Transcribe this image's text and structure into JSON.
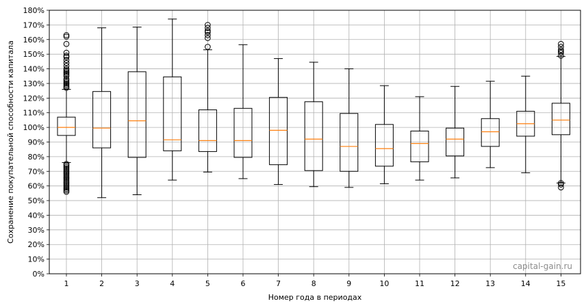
{
  "chart_data": {
    "type": "boxplot",
    "xlabel": "Номер года в периодах",
    "ylabel": "Сохранение покупательной способности капитала",
    "watermark": "capital-gain.ru",
    "ylim": [
      0,
      180
    ],
    "y_unit": "%",
    "y_ticks": [
      "0%",
      "10%",
      "20%",
      "30%",
      "40%",
      "50%",
      "60%",
      "70%",
      "80%",
      "90%",
      "100%",
      "110%",
      "120%",
      "130%",
      "140%",
      "150%",
      "160%",
      "170%",
      "180%"
    ],
    "grid": true,
    "colors": {
      "box": "#000000",
      "median": "#ff7f0e",
      "grid": "#b0b0b0"
    },
    "boxes": [
      {
        "x": "1",
        "whisker_low": 76,
        "q1": 94.5,
        "median": 100,
        "q3": 107,
        "whisker_high": 126,
        "outliers": [
          56,
          57,
          58,
          59,
          60,
          61,
          62,
          63,
          64,
          65,
          66,
          67,
          68,
          69,
          70,
          71,
          72,
          73,
          74,
          75,
          127,
          128,
          129,
          130,
          131,
          132,
          133,
          135,
          136,
          137,
          138,
          139,
          140,
          142,
          144,
          146,
          148,
          149,
          151,
          157,
          162,
          163
        ]
      },
      {
        "x": "2",
        "whisker_low": 52,
        "q1": 86,
        "median": 99.5,
        "q3": 124.5,
        "whisker_high": 168,
        "outliers": []
      },
      {
        "x": "3",
        "whisker_low": 54,
        "q1": 79.5,
        "median": 104.5,
        "q3": 138,
        "whisker_high": 168.5,
        "outliers": []
      },
      {
        "x": "4",
        "whisker_low": 64,
        "q1": 84,
        "median": 91.5,
        "q3": 134.5,
        "whisker_high": 174,
        "outliers": []
      },
      {
        "x": "5",
        "whisker_low": 69.5,
        "q1": 83.5,
        "median": 91,
        "q3": 112,
        "whisker_high": 153,
        "outliers": [
          155,
          161,
          163,
          165,
          166,
          168,
          170
        ]
      },
      {
        "x": "6",
        "whisker_low": 65,
        "q1": 79.5,
        "median": 91,
        "q3": 113,
        "whisker_high": 156.5,
        "outliers": []
      },
      {
        "x": "7",
        "whisker_low": 61,
        "q1": 74.5,
        "median": 98,
        "q3": 120.5,
        "whisker_high": 147,
        "outliers": []
      },
      {
        "x": "8",
        "whisker_low": 59.5,
        "q1": 70.5,
        "median": 92,
        "q3": 117.5,
        "whisker_high": 144.5,
        "outliers": []
      },
      {
        "x": "9",
        "whisker_low": 59,
        "q1": 70,
        "median": 87,
        "q3": 109.5,
        "whisker_high": 140,
        "outliers": []
      },
      {
        "x": "10",
        "whisker_low": 61.5,
        "q1": 73.5,
        "median": 85.5,
        "q3": 102,
        "whisker_high": 128.5,
        "outliers": []
      },
      {
        "x": "11",
        "whisker_low": 64,
        "q1": 76.5,
        "median": 89,
        "q3": 97.5,
        "whisker_high": 121,
        "outliers": []
      },
      {
        "x": "12",
        "whisker_low": 65.5,
        "q1": 80.5,
        "median": 92,
        "q3": 99.5,
        "whisker_high": 128,
        "outliers": []
      },
      {
        "x": "13",
        "whisker_low": 72.5,
        "q1": 87,
        "median": 97,
        "q3": 106,
        "whisker_high": 131.5,
        "outliers": []
      },
      {
        "x": "14",
        "whisker_low": 69,
        "q1": 94,
        "median": 102.5,
        "q3": 111,
        "whisker_high": 135,
        "outliers": []
      },
      {
        "x": "15",
        "whisker_low": 62,
        "q1": 95,
        "median": 105,
        "q3": 116.5,
        "whisker_high": 148.5,
        "outliers": [
          59,
          61,
          62,
          149,
          151,
          152,
          153,
          155,
          157
        ]
      }
    ]
  }
}
